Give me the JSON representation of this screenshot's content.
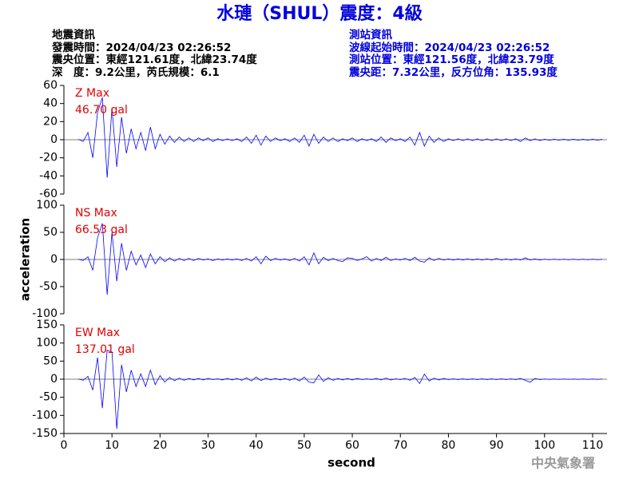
{
  "header": {
    "title": "水璉（SHUL）震度：4級",
    "left": [
      "地震資訊",
      "發震時間：2024/04/23 02:26:52",
      "震央位置：東經121.61度，北緯23.74度",
      "深　度：9.2公里，芮氏規模：6.1"
    ],
    "right": [
      "測站資訊",
      "波線起始時間：2024/04/23 02:26:52",
      "測站位置：東經121.56度，北緯23.79度",
      "震央距：7.32公里，反方位角：135.93度"
    ]
  },
  "chart_data": [
    {
      "type": "line",
      "annotations": [
        "Z Max",
        "46.70 gal"
      ],
      "color": "#0000ff",
      "xlim": [
        0,
        113
      ],
      "ylim": [
        -60,
        60
      ],
      "yticks": [
        -60,
        -40,
        -20,
        0,
        20,
        40,
        60
      ],
      "x": [
        3,
        4,
        5,
        6,
        7,
        8,
        9,
        10,
        11,
        12,
        13,
        14,
        15,
        16,
        17,
        18,
        19,
        20,
        21,
        22,
        23,
        24,
        25,
        26,
        27,
        28,
        29,
        30,
        31,
        32,
        33,
        34,
        35,
        36,
        37,
        38,
        39,
        40,
        41,
        42,
        43,
        44,
        45,
        46,
        47,
        48,
        49,
        50,
        51,
        52,
        53,
        54,
        55,
        56,
        57,
        58,
        59,
        60,
        61,
        62,
        63,
        64,
        65,
        66,
        67,
        68,
        69,
        70,
        71,
        72,
        73,
        74,
        75,
        76,
        77,
        78,
        79,
        80,
        81,
        82,
        83,
        84,
        85,
        86,
        87,
        88,
        89,
        90,
        91,
        92,
        93,
        94,
        95,
        96,
        97,
        98,
        99,
        100,
        101,
        102,
        103,
        104,
        105,
        106,
        107,
        108,
        109,
        110,
        111,
        112
      ],
      "values": [
        0.5,
        -2,
        8,
        -20,
        30,
        46.7,
        -42,
        35,
        -30,
        25,
        -15,
        12,
        -10,
        8,
        -12,
        14,
        -10,
        6,
        -5,
        4,
        -3,
        3,
        -2,
        2,
        -2,
        2,
        -1,
        2,
        -2,
        1,
        -1,
        1,
        -1,
        1,
        -2,
        3,
        -4,
        5,
        -6,
        4,
        -2,
        2,
        -1,
        1,
        -2,
        2,
        -3,
        5,
        -7,
        6,
        -4,
        3,
        -2,
        2,
        -2,
        1,
        -1,
        2,
        -2,
        1,
        -1,
        1,
        -2,
        3,
        -3,
        2,
        -1,
        1,
        -2,
        3,
        -6,
        8,
        -7,
        4,
        -3,
        2,
        -2,
        1,
        -1,
        1,
        -1,
        1,
        -1,
        1,
        -1,
        1,
        -1,
        1,
        -1,
        1,
        -1,
        1,
        -2,
        2,
        -1,
        1,
        -1,
        0.5,
        -0.5,
        0.5,
        -0.5,
        0.5,
        -0.5,
        0.5,
        -0.5,
        0.5,
        -0.5,
        0.5,
        -0.5,
        0.5
      ]
    },
    {
      "type": "line",
      "annotations": [
        "NS Max",
        "66.53 gal"
      ],
      "color": "#0000ff",
      "ylabel": "acceleration",
      "xlim": [
        0,
        113
      ],
      "ylim": [
        -100,
        100
      ],
      "yticks": [
        -100,
        -50,
        0,
        50,
        100
      ],
      "x": [
        3,
        4,
        5,
        6,
        7,
        8,
        9,
        10,
        11,
        12,
        13,
        14,
        15,
        16,
        17,
        18,
        19,
        20,
        21,
        22,
        23,
        24,
        25,
        26,
        27,
        28,
        29,
        30,
        31,
        32,
        33,
        34,
        35,
        36,
        37,
        38,
        39,
        40,
        41,
        42,
        43,
        44,
        45,
        46,
        47,
        48,
        49,
        50,
        51,
        52,
        53,
        54,
        55,
        56,
        57,
        58,
        59,
        60,
        61,
        62,
        63,
        64,
        65,
        66,
        67,
        68,
        69,
        70,
        71,
        72,
        73,
        74,
        75,
        76,
        77,
        78,
        79,
        80,
        81,
        82,
        83,
        84,
        85,
        86,
        87,
        88,
        89,
        90,
        91,
        92,
        93,
        94,
        95,
        96,
        97,
        98,
        99,
        100,
        101,
        102,
        103,
        104,
        105,
        106,
        107,
        108,
        109,
        110,
        111,
        112
      ],
      "values": [
        0.5,
        -2,
        5,
        -20,
        40,
        66.53,
        -65,
        50,
        -40,
        30,
        -20,
        15,
        -10,
        8,
        -15,
        10,
        -8,
        5,
        -4,
        3,
        -3,
        2,
        -2,
        2,
        -2,
        2,
        -1,
        1,
        -2,
        1,
        -1,
        1,
        -1,
        1,
        -2,
        2,
        -3,
        5,
        -8,
        6,
        -2,
        2,
        -1,
        1,
        -2,
        2,
        -3,
        5,
        -10,
        12,
        -8,
        4,
        -2,
        2,
        -2,
        -4,
        3,
        2,
        -2,
        1,
        5,
        -3,
        2,
        -2,
        4,
        -2,
        1,
        -1,
        2,
        -2,
        4,
        -3,
        -5,
        3,
        -2,
        2,
        -1,
        1,
        -1,
        1,
        -1,
        1,
        -1,
        1,
        -1,
        1,
        -1,
        2,
        -1,
        1,
        -1,
        1,
        -1,
        3,
        -1,
        1,
        -1,
        0.5,
        -0.5,
        0.5,
        -0.5,
        0.5,
        -0.5,
        0.5,
        -0.5,
        0.5,
        -0.5,
        0.5,
        -0.5,
        0.5
      ]
    },
    {
      "type": "line",
      "annotations": [
        "EW Max",
        "137.01 gal"
      ],
      "color": "#0000ff",
      "xlabel": "second",
      "xlim": [
        0,
        113
      ],
      "xticks": [
        0,
        10,
        20,
        30,
        40,
        50,
        60,
        70,
        80,
        90,
        100,
        110
      ],
      "ylim": [
        -150,
        150
      ],
      "yticks": [
        -150,
        -100,
        -50,
        0,
        50,
        100,
        150
      ],
      "x": [
        3,
        4,
        5,
        6,
        7,
        8,
        9,
        10,
        11,
        12,
        13,
        14,
        15,
        16,
        17,
        18,
        19,
        20,
        21,
        22,
        23,
        24,
        25,
        26,
        27,
        28,
        29,
        30,
        31,
        32,
        33,
        34,
        35,
        36,
        37,
        38,
        39,
        40,
        41,
        42,
        43,
        44,
        45,
        46,
        47,
        48,
        49,
        50,
        51,
        52,
        53,
        54,
        55,
        56,
        57,
        58,
        59,
        60,
        61,
        62,
        63,
        64,
        65,
        66,
        67,
        68,
        69,
        70,
        71,
        72,
        73,
        74,
        75,
        76,
        77,
        78,
        79,
        80,
        81,
        82,
        83,
        84,
        85,
        86,
        87,
        88,
        89,
        90,
        91,
        92,
        93,
        94,
        95,
        96,
        97,
        98,
        99,
        100,
        101,
        102,
        103,
        104,
        105,
        106,
        107,
        108,
        109,
        110,
        111,
        112
      ],
      "values": [
        0.5,
        -3,
        8,
        -30,
        60,
        -80,
        80,
        75,
        -137.01,
        40,
        -35,
        25,
        -20,
        15,
        -20,
        25,
        -15,
        10,
        -8,
        5,
        -4,
        3,
        -3,
        2,
        -2,
        2,
        -2,
        2,
        -1,
        1,
        -2,
        2,
        -2,
        2,
        -3,
        4,
        -5,
        6,
        -4,
        3,
        -2,
        2,
        -2,
        2,
        -3,
        3,
        -5,
        6,
        -8,
        -10,
        12,
        -6,
        4,
        -3,
        2,
        -2,
        2,
        -2,
        2,
        -1,
        1,
        -1,
        2,
        -2,
        3,
        -2,
        1,
        -1,
        2,
        -3,
        5,
        -12,
        14,
        -5,
        3,
        -2,
        2,
        -1,
        1,
        -1,
        1,
        -1,
        1,
        -1,
        1,
        -1,
        1,
        -1,
        1,
        -1,
        1,
        -1,
        2,
        -3,
        -8,
        2,
        -1,
        0.5,
        -0.5,
        0.5,
        -0.5,
        0.5,
        -0.5,
        0.5,
        -0.5,
        0.5,
        -0.5,
        0.5,
        -0.5,
        0.5
      ]
    }
  ],
  "footer": "中央氣象署"
}
